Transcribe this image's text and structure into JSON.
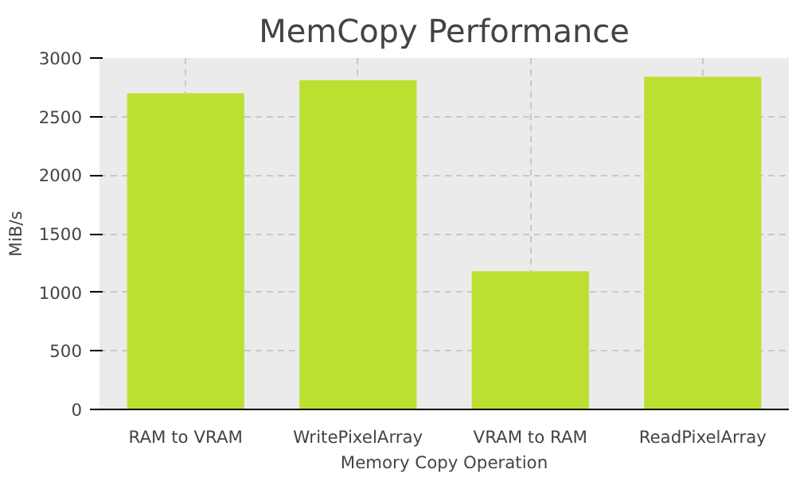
{
  "chart_data": {
    "type": "bar",
    "title": "MemCopy Performance",
    "xlabel": "Memory Copy Operation",
    "ylabel": "MiB/s",
    "categories": [
      "RAM to VRAM",
      "WritePixelArray",
      "VRAM to RAM",
      "ReadPixelArray"
    ],
    "values": [
      2700,
      2810,
      1180,
      2840
    ],
    "color": "#bce031",
    "ylim": [
      0,
      3000
    ],
    "yticks": [
      0,
      500,
      1000,
      1500,
      2000,
      2500,
      3000
    ],
    "grid": true
  }
}
